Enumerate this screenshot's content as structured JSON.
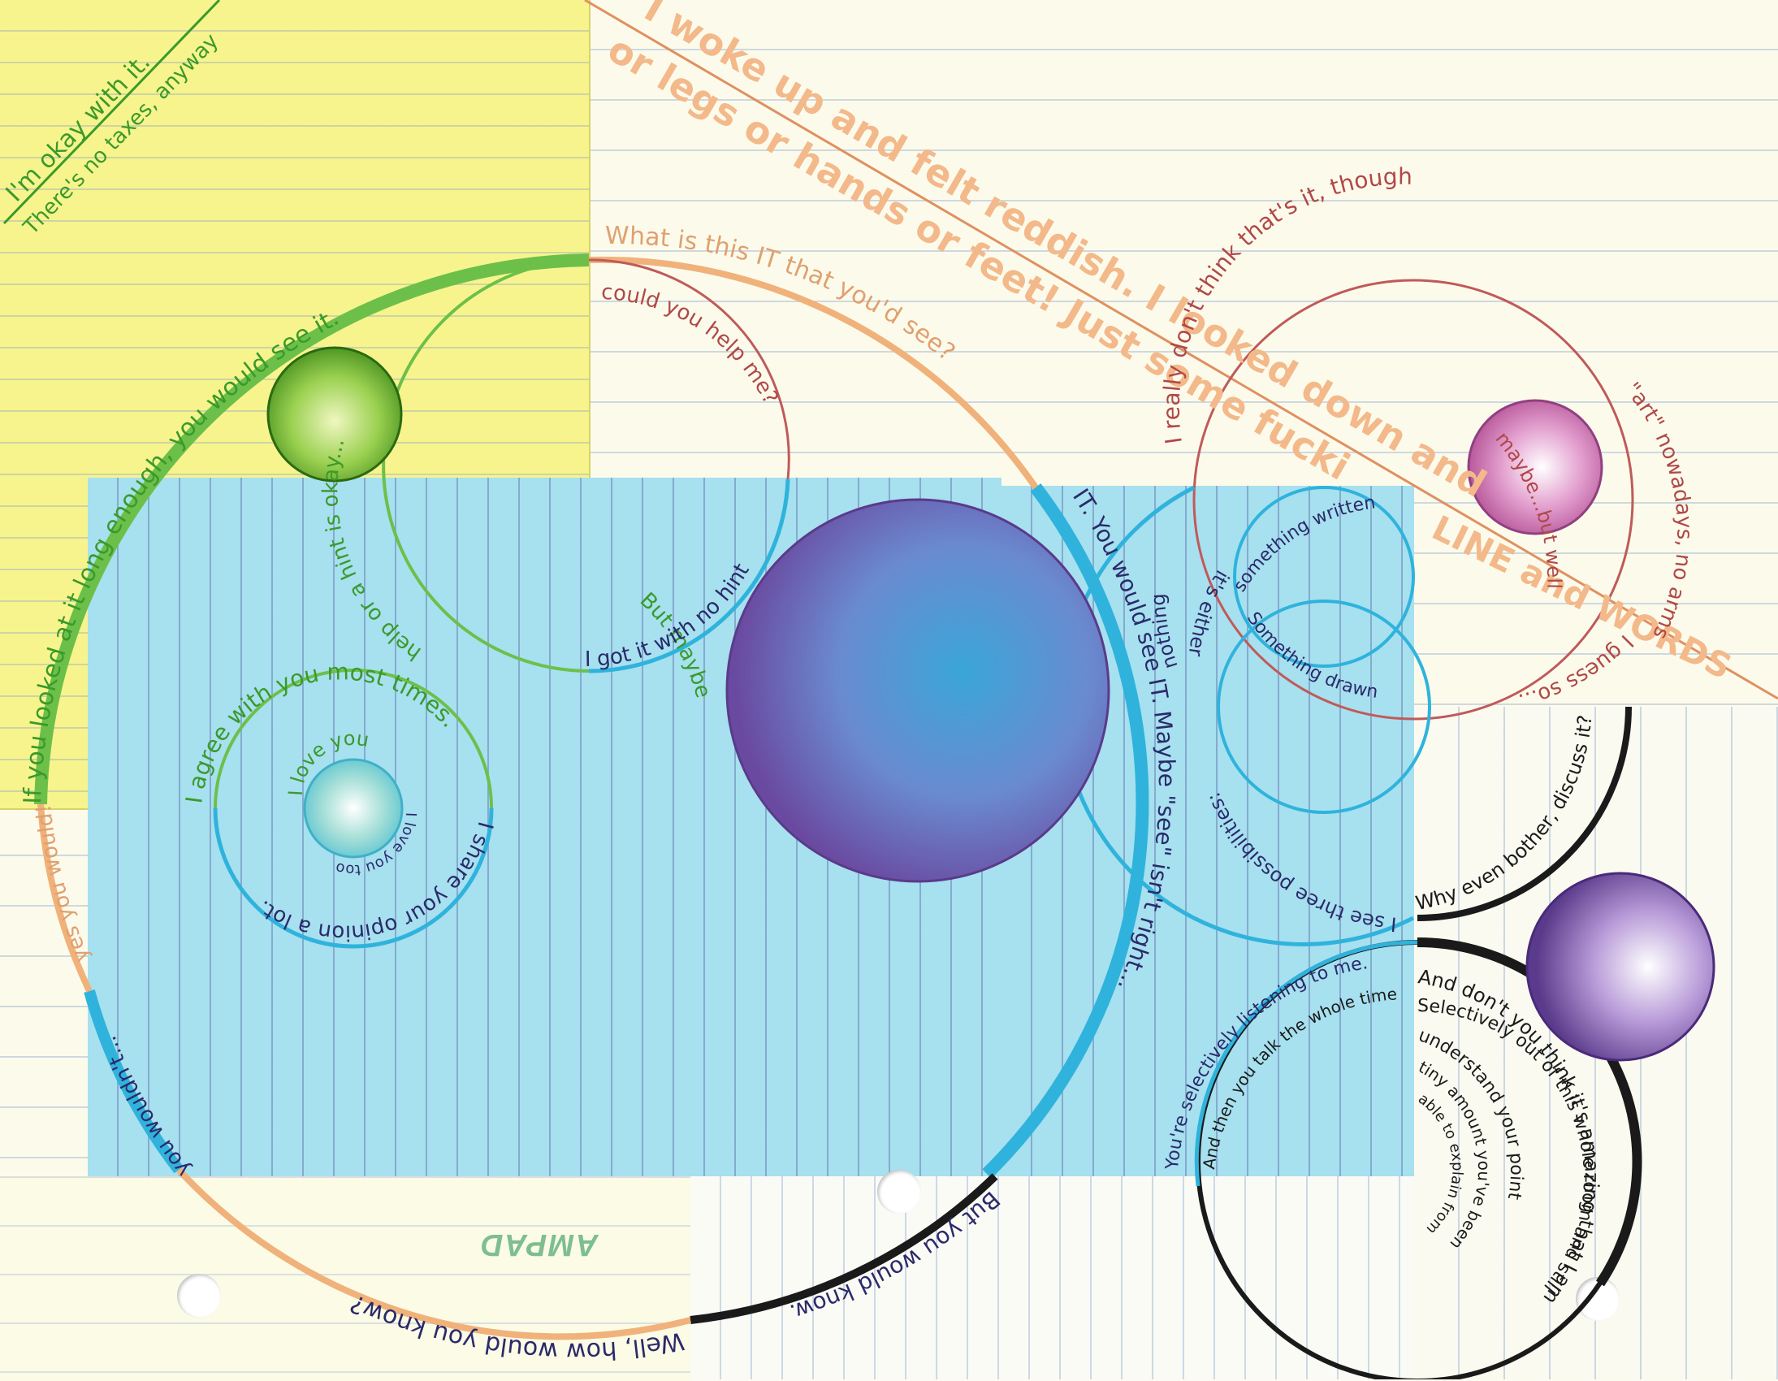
{
  "texts": {
    "okay": "I'm okay with it.",
    "taxes": "There's no taxes, anyway",
    "woke": "I woke up and felt reddish. I looked down and",
    "legs": "or legs or hands or feet! Just some fucki",
    "if_you_looked": "If you looked at it long enough, you would see it.",
    "what_is_this": "What is this IT that you'd see?",
    "could_you": "could you help me?",
    "help_or_hint": "help or a hint is okay...",
    "but_maybe": "But maybe",
    "got_it": "I got it with no hint",
    "agree": "I agree with you most times.",
    "share": "I share your opinion a lot.",
    "love_you": "I love you",
    "love_you_too": "I love you too",
    "yes_you_would": "yes you would!",
    "you_wouldnt": "you wouldn't...",
    "well_how": "Well, how would you know?",
    "but_you_would": "But you would know.",
    "it_you_would_see": "IT. You would see IT. Maybe \"see\" isn't right...",
    "dont_think": "I really don't think that's it, though",
    "art": "\"art\" nowadays, no arms",
    "line_words": "LINE and WORDS",
    "maybe_well": "maybe...but well",
    "guess_so": "I guess so...",
    "something_written": "something written",
    "something_drawn": "Something drawn",
    "its_either": "it's either",
    "nothing": "nothing",
    "possibilities": "I see three possibilities:",
    "why_bother": "Why even bother, discuss it?",
    "selectively": "You're selectively listening to me.",
    "then_you_talk": "And then you talk the whole time and I don't have enough time to get my point across",
    "and_dont": "And don't you think it's amazing that I am able to listen to you",
    "understand": "Selectively out of this whole room and still",
    "amount": "understand your point",
    "tiny": "tiny amount you've been",
    "explain": "able to explain from",
    "brand": "AMPAD"
  },
  "colors": {
    "yellow_note": "#f7f48e",
    "blue_note": "#a7e0ef",
    "green_arc": "#6cc04a",
    "orange_arc": "#f0b27a",
    "blue_arc": "#2fb3dc",
    "black_arc": "#1a1a1a",
    "red_ink": "#c06060",
    "orange_ink": "#f3b98a",
    "purple_sphere": "#6a4aa0",
    "pink_sphere": "#c05aa0",
    "green_sphere": "#5aaa2a"
  },
  "icons": [
    "hole-punch-icon",
    "sphere-icon"
  ]
}
